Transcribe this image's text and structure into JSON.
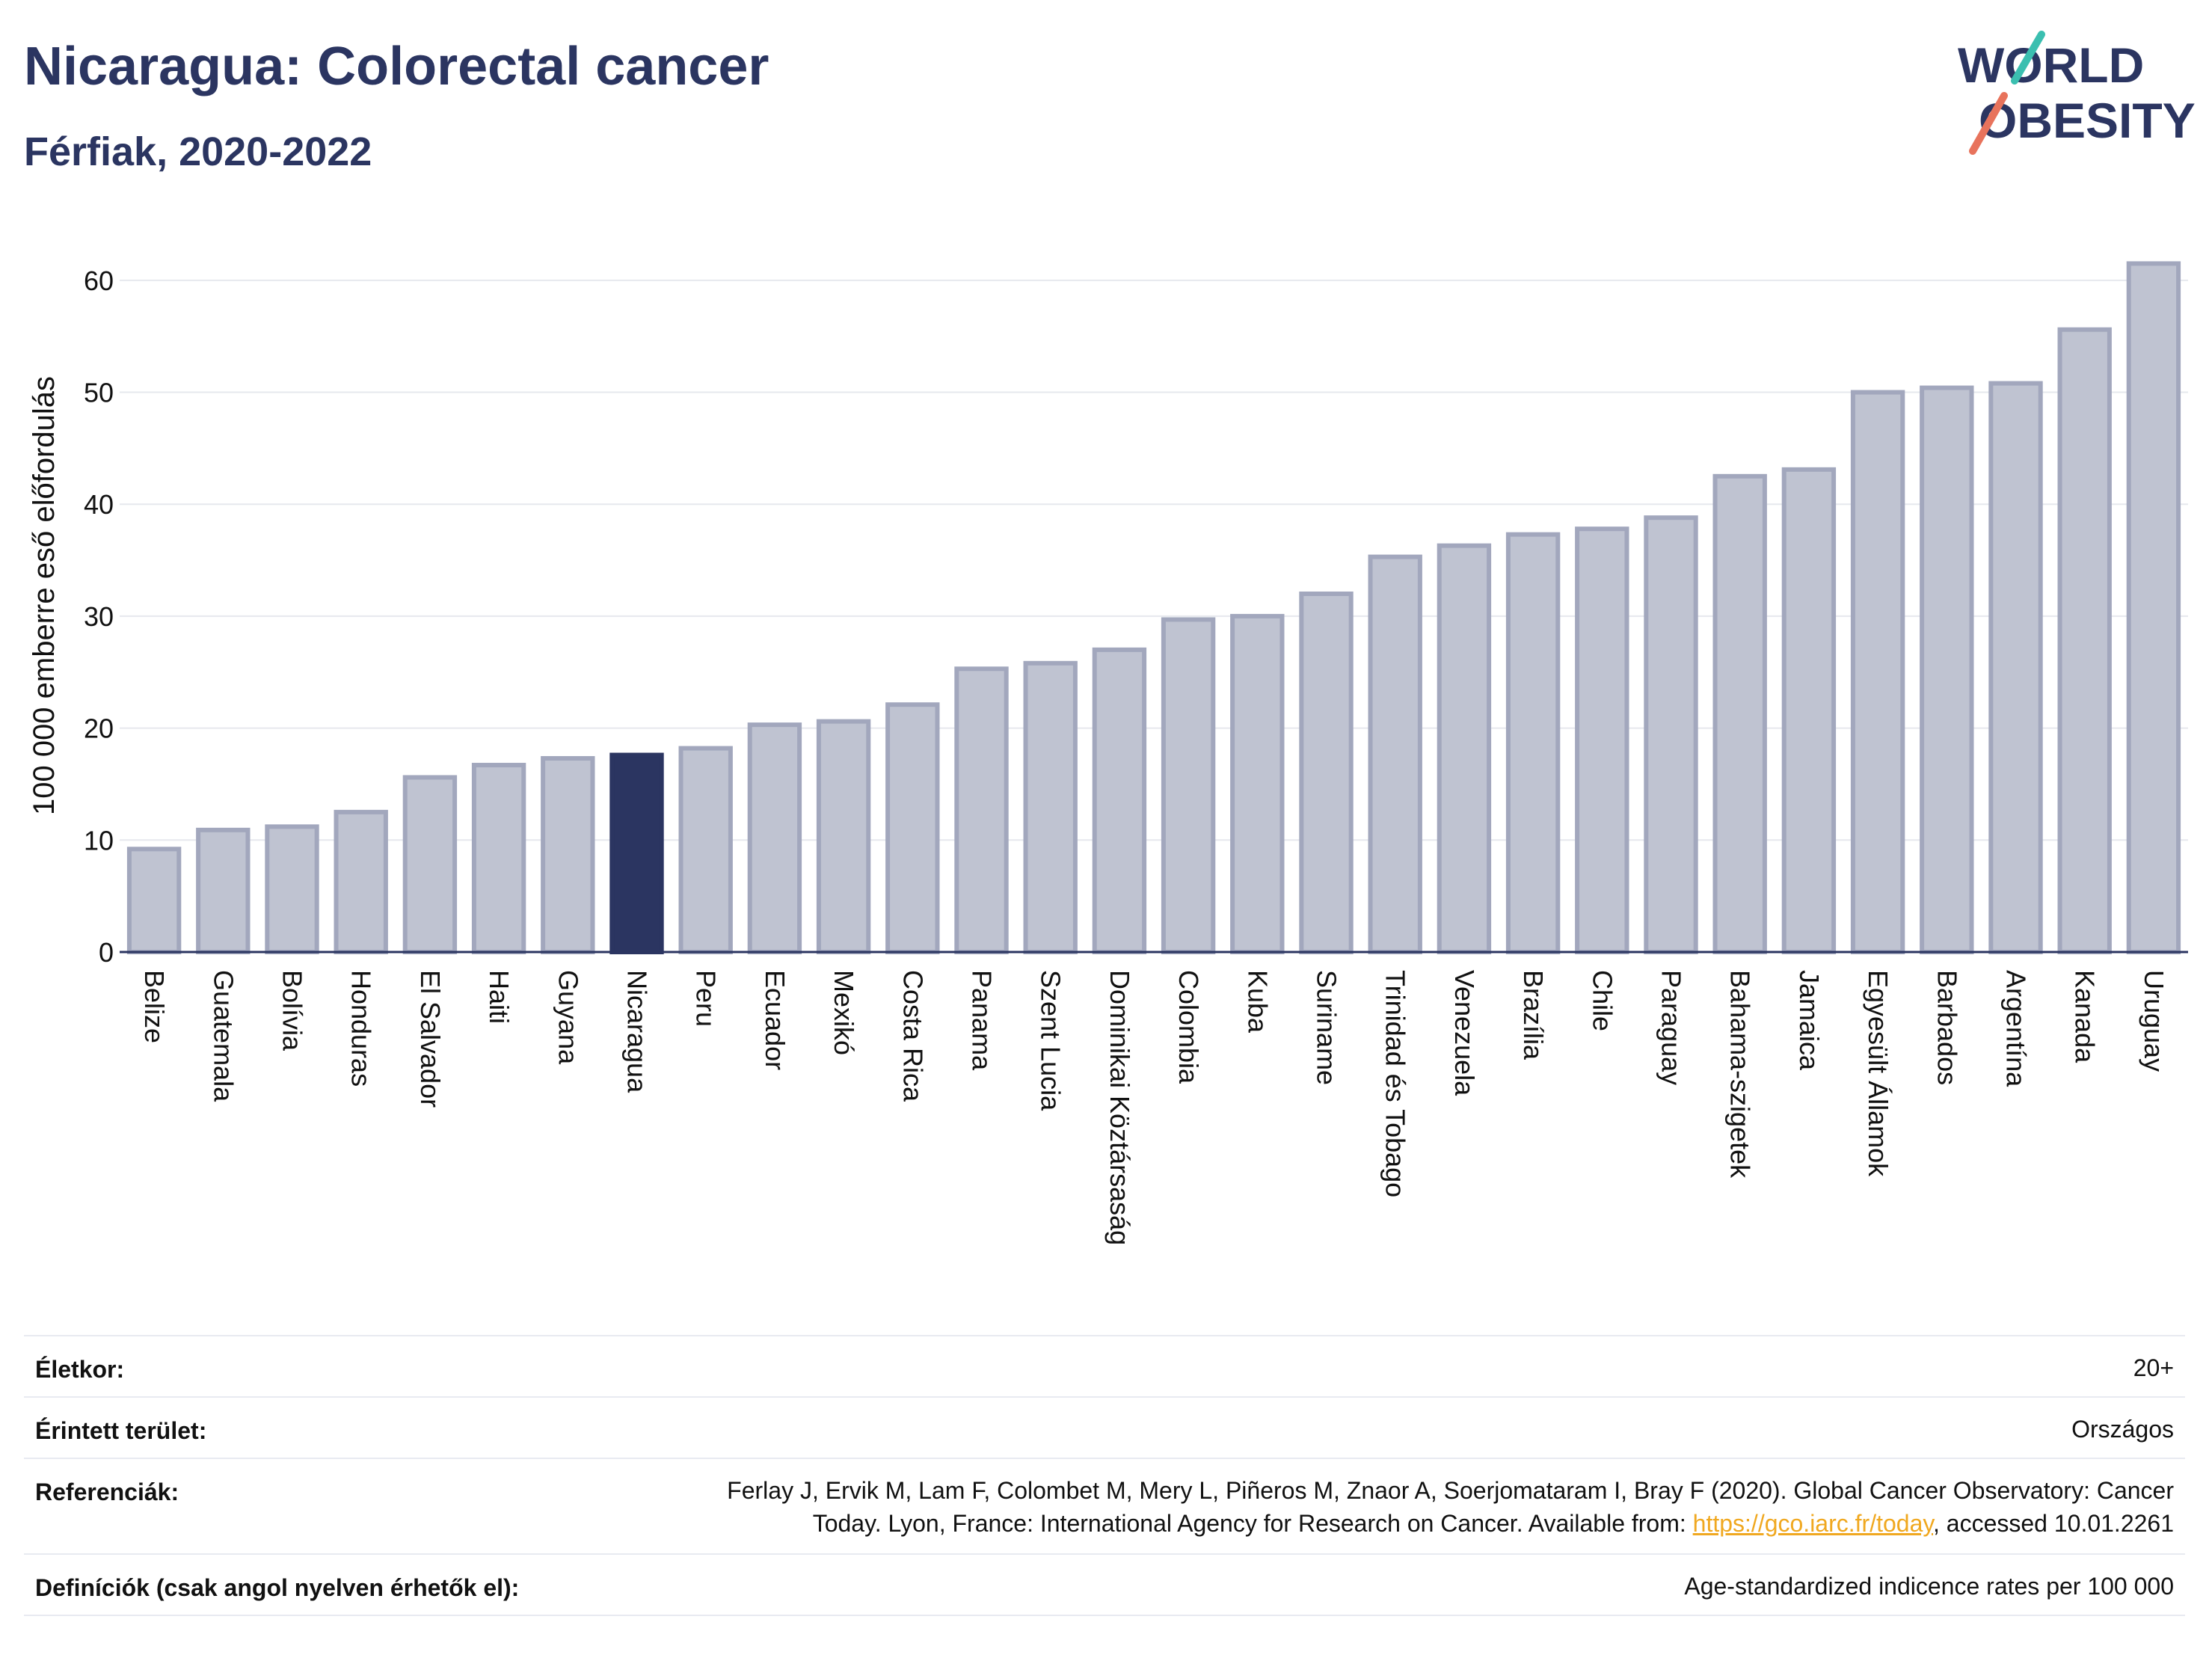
{
  "title": "Nicaragua: Colorectal cancer",
  "subtitle": "Férfiak, 2020-2022",
  "logo": {
    "line1": "WORLD",
    "line2": "OBESITY"
  },
  "chart_data": {
    "type": "bar",
    "ylabel": "100 000 emberre eső előfordulás",
    "xlabel": "",
    "ylim": [
      0,
      65
    ],
    "yticks": [
      0,
      10,
      20,
      30,
      40,
      50,
      60
    ],
    "grid": true,
    "highlight": "Nicaragua",
    "colors": {
      "bar": "#bfc3d1",
      "bar_edge": "#a2a7bd",
      "highlight": "#2b3561",
      "grid": "#e6e8ee"
    },
    "categories": [
      "Belize",
      "Guatemala",
      "Bolívia",
      "Honduras",
      "El Salvador",
      "Haiti",
      "Guyana",
      "Nicaragua",
      "Peru",
      "Ecuador",
      "Mexikó",
      "Costa Rica",
      "Panama",
      "Szent Lucia",
      "Dominikai Köztársaság",
      "Colombia",
      "Kuba",
      "Suriname",
      "Trinidad és Tobago",
      "Venezuela",
      "Brazília",
      "Chile",
      "Paraguay",
      "Bahama-szigetek",
      "Jamaica",
      "Egyesült Államok",
      "Barbados",
      "Argentína",
      "Kanada",
      "Uruguay"
    ],
    "values": [
      9.2,
      10.9,
      11.2,
      12.5,
      15.6,
      16.7,
      17.3,
      17.6,
      18.2,
      20.3,
      20.6,
      22.1,
      25.3,
      25.8,
      27.0,
      29.7,
      30.0,
      32.0,
      35.3,
      36.3,
      37.3,
      37.8,
      38.8,
      42.5,
      43.1,
      50.0,
      50.4,
      50.8,
      55.6,
      61.5
    ]
  },
  "meta": {
    "age_label": "Életkor:",
    "age_value": "20+",
    "area_label": "Érintett terület:",
    "area_value": "Országos",
    "ref_label": "Referenciák:",
    "ref_line1": "Ferlay J, Ervik M, Lam F, Colombet M, Mery L, Piñeros M, Znaor A, Soerjomataram I, Bray F (2020). Global Cancer Observatory: Cancer",
    "ref_line2_pre": "Today. Lyon, France: International Agency for Research on Cancer. Available from: ",
    "ref_link": "https://gco.iarc.fr/today",
    "ref_line2_post": ", accessed 10.01.2261",
    "def_label": "Definíciók (csak angol nyelven érhetők el):",
    "def_value": "Age-standardized indicence rates per 100 000"
  }
}
